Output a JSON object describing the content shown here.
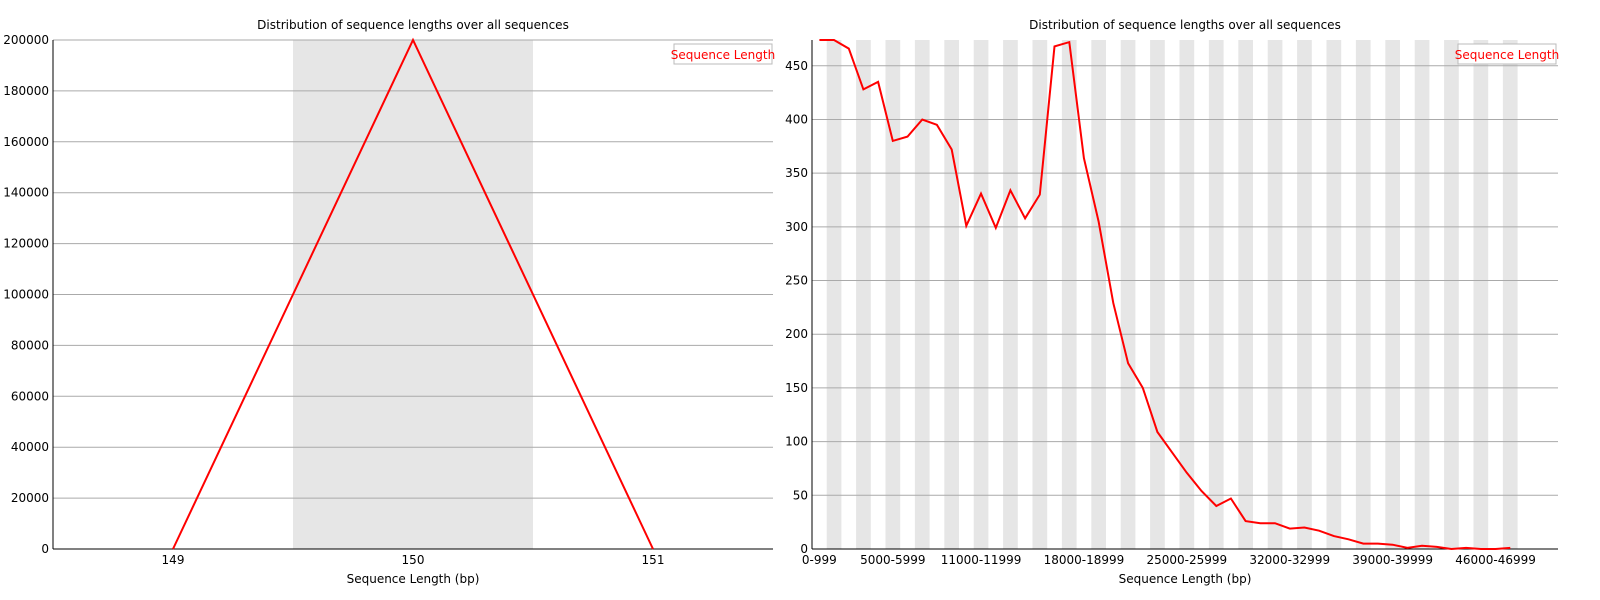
{
  "chart_data": [
    {
      "type": "line",
      "title": "Distribution of sequence lengths over all sequences",
      "xlabel": "Sequence Length (bp)",
      "ylabel": "",
      "categories": [
        "149",
        "150",
        "151"
      ],
      "series": [
        {
          "name": "Sequence Length",
          "color": "#ff0000",
          "values": [
            0,
            200000,
            0
          ]
        }
      ],
      "ylim": [
        0,
        200000
      ],
      "yticks": [
        0,
        20000,
        40000,
        60000,
        80000,
        100000,
        120000,
        140000,
        160000,
        180000,
        200000
      ],
      "grid": true,
      "legend": "top-right"
    },
    {
      "type": "line",
      "title": "Distribution of sequence lengths over all sequences",
      "xlabel": "Sequence Length (bp)",
      "ylabel": "",
      "categories": [
        "0-999",
        "1000-1999",
        "2000-2999",
        "3000-3999",
        "4000-4999",
        "5000-5999",
        "6000-6999",
        "7000-7999",
        "8000-8999",
        "9000-9999",
        "10000-10999",
        "11000-11999",
        "12000-12999",
        "13000-13999",
        "14000-14999",
        "15000-15999",
        "16000-16999",
        "17000-17999",
        "18000-18999",
        "19000-19999",
        "20000-20999",
        "21000-21999",
        "22000-22999",
        "23000-23999",
        "24000-24999",
        "25000-25999",
        "26000-26999",
        "27000-27999",
        "28000-28999",
        "29000-29999",
        "30000-30999",
        "31000-31999",
        "32000-32999",
        "33000-33999",
        "34000-34999",
        "35000-35999",
        "36000-36999",
        "37000-37999",
        "38000-38999",
        "39000-39999",
        "40000-40999",
        "41000-41999",
        "42000-42999",
        "43000-43999",
        "44000-44999",
        "45000-45999",
        "46000-46999",
        "47000-47999"
      ],
      "tick_labels": [
        "0-999",
        "5000-5999",
        "11000-11999",
        "18000-18999",
        "25000-25999",
        "32000-32999",
        "39000-39999",
        "46000-46999"
      ],
      "series": [
        {
          "name": "Sequence Length",
          "color": "#ff0000",
          "values": [
            474,
            474,
            466,
            428,
            435,
            380,
            384,
            400,
            395,
            372,
            301,
            331,
            299,
            334,
            308,
            330,
            468,
            472,
            364,
            305,
            229,
            173,
            150,
            109,
            90,
            71,
            54,
            40,
            47,
            26,
            24,
            24,
            19,
            20,
            17,
            12,
            9,
            5,
            5,
            4,
            1,
            3,
            2,
            0,
            1,
            0,
            0,
            1
          ]
        }
      ],
      "ylim": [
        0,
        474
      ],
      "yticks": [
        0,
        50,
        100,
        150,
        200,
        250,
        300,
        350,
        400,
        450
      ],
      "grid": true,
      "legend": "top-right"
    }
  ]
}
